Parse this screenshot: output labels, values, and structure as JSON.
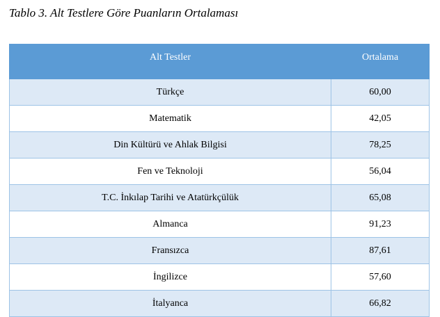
{
  "caption": "Tablo 3. Alt Testlere Göre Puanların Ortalaması",
  "table": {
    "headers": [
      "Alt Testler",
      "Ortalama"
    ],
    "rows": [
      [
        "Türkçe",
        "60,00"
      ],
      [
        "Matematik",
        "42,05"
      ],
      [
        "Din Kültürü ve Ahlak Bilgisi",
        "78,25"
      ],
      [
        "Fen ve Teknoloji",
        "56,04"
      ],
      [
        "T.C. İnkılap Tarihi ve Atatürkçülük",
        "65,08"
      ],
      [
        "Almanca",
        "91,23"
      ],
      [
        "Fransızca",
        "87,61"
      ],
      [
        "İngilizce",
        "57,60"
      ],
      [
        "İtalyanca",
        "66,82"
      ]
    ]
  },
  "colors": {
    "header_bg": "#5b9bd5",
    "band_bg": "#dde9f6",
    "grid": "#9dc3e6"
  }
}
